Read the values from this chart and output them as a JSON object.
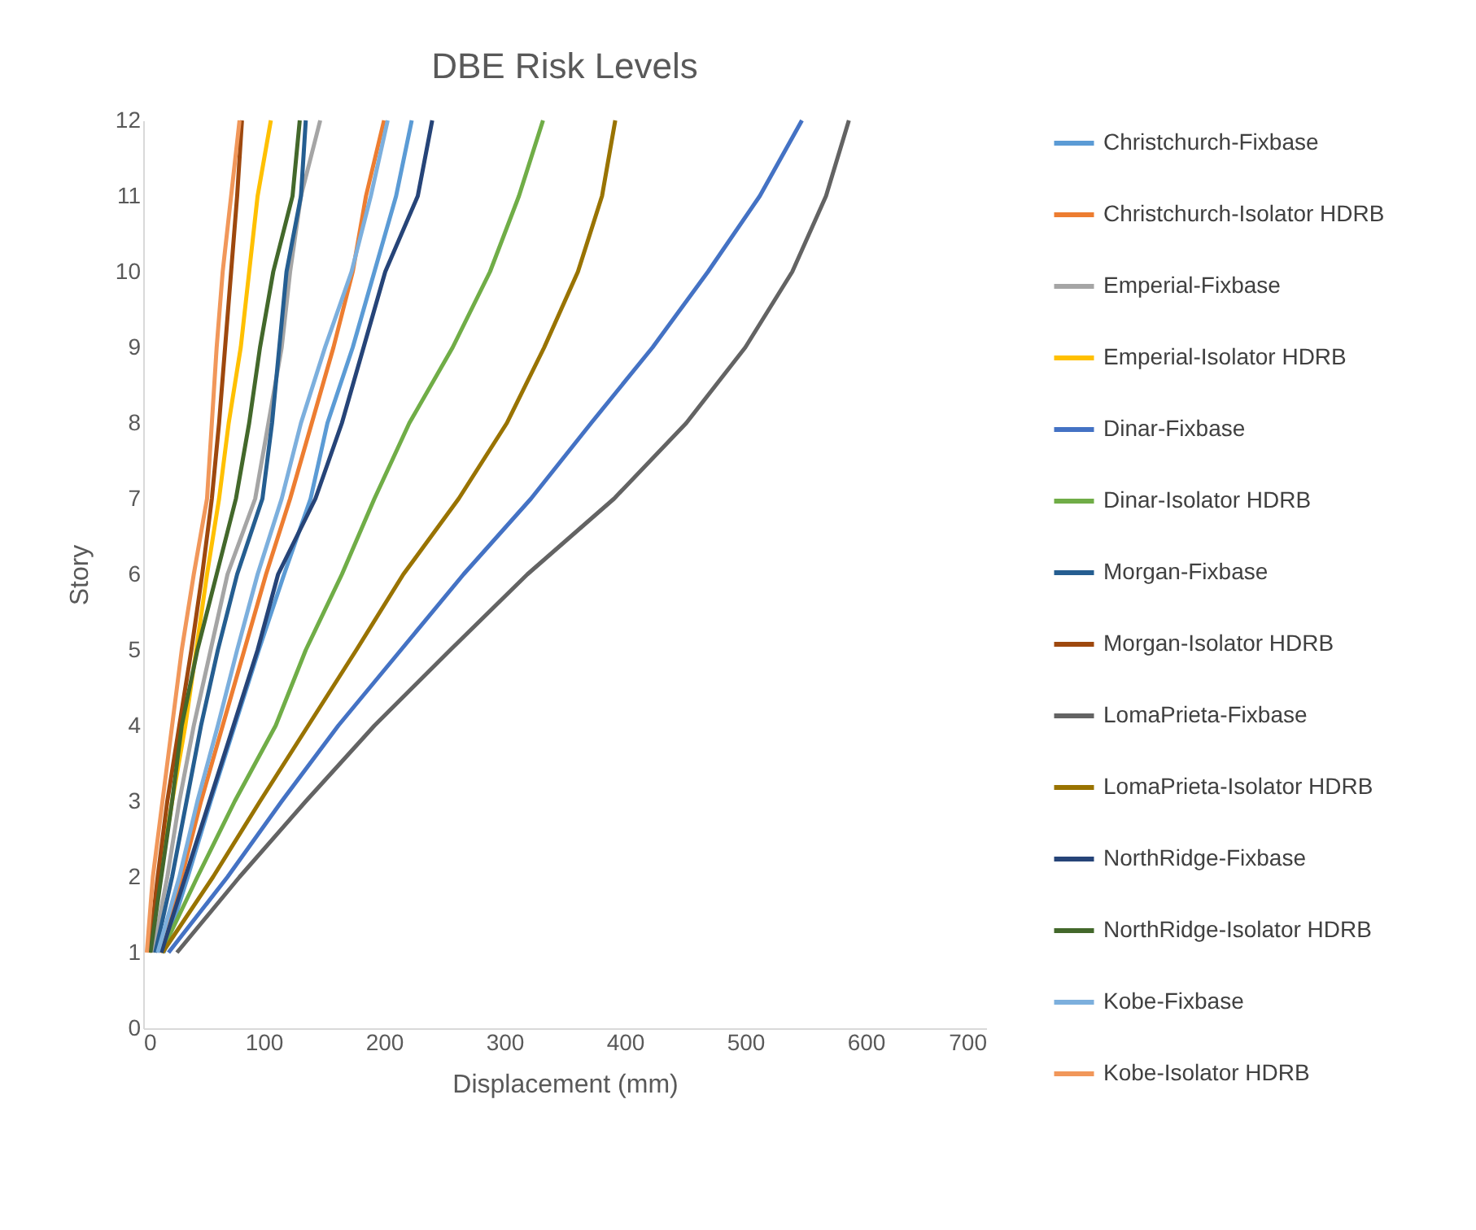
{
  "chart_data": {
    "type": "line",
    "title": "DBE Risk Levels",
    "xlabel": "Displacement (mm)",
    "ylabel": "Story",
    "xlim": [
      0,
      700
    ],
    "xticks": [
      0,
      100,
      200,
      300,
      400,
      500,
      600,
      700
    ],
    "ylim": [
      0,
      12
    ],
    "yticks": [
      0,
      1,
      2,
      3,
      4,
      5,
      6,
      7,
      8,
      9,
      10,
      11,
      12
    ],
    "grid": false,
    "legend": "right",
    "marker": "none",
    "line_style": "solid",
    "series": [
      {
        "name": "Christchurch-Fixbase",
        "color": "#5b9bd5",
        "x": [
          17,
          37,
          56,
          76,
          96,
          117,
          139,
          153,
          174,
          192,
          210,
          223
        ],
        "values": [
          1,
          2,
          3,
          4,
          5,
          6,
          7,
          8,
          9,
          10,
          11,
          12
        ]
      },
      {
        "name": "Christchurch-Isolator HDRB",
        "color": "#ed7d31",
        "x": [
          14,
          32,
          48,
          66,
          84,
          102,
          122,
          140,
          158,
          174,
          185,
          200
        ],
        "values": [
          1,
          2,
          3,
          4,
          5,
          6,
          7,
          8,
          9,
          10,
          11,
          12
        ]
      },
      {
        "name": "Emperial-Fixbase",
        "color": "#a5a5a5",
        "x": [
          8,
          20,
          30,
          42,
          56,
          70,
          93,
          104,
          115,
          122,
          131,
          147
        ],
        "values": [
          1,
          2,
          3,
          4,
          5,
          6,
          7,
          8,
          9,
          10,
          11,
          12
        ]
      },
      {
        "name": "Emperial-Isolator HDRB",
        "color": "#ffc000",
        "x": [
          5,
          14,
          24,
          35,
          44,
          53,
          63,
          71,
          81,
          88,
          95,
          106
        ],
        "values": [
          1,
          2,
          3,
          4,
          5,
          6,
          7,
          8,
          9,
          10,
          11,
          12
        ]
      },
      {
        "name": "Dinar-Fixbase",
        "color": "#4472c4",
        "x": [
          21,
          70,
          115,
          162,
          214,
          266,
          322,
          372,
          423,
          469,
          512,
          547
        ],
        "values": [
          1,
          2,
          3,
          4,
          5,
          6,
          7,
          8,
          9,
          10,
          11,
          12
        ]
      },
      {
        "name": "Dinar-Isolator HDRB",
        "color": "#70ad47",
        "x": [
          15,
          45,
          76,
          110,
          135,
          165,
          192,
          221,
          257,
          288,
          312,
          332
        ],
        "values": [
          1,
          2,
          3,
          4,
          5,
          6,
          7,
          8,
          9,
          10,
          11,
          12
        ]
      },
      {
        "name": "Morgan-Fixbase",
        "color": "#255e91",
        "x": [
          10,
          24,
          36,
          48,
          62,
          78,
          99,
          107,
          113,
          119,
          131,
          135
        ],
        "values": [
          1,
          2,
          3,
          4,
          5,
          6,
          7,
          8,
          9,
          10,
          11,
          12
        ]
      },
      {
        "name": "Morgan-Isolator HDRB",
        "color": "#9e480e",
        "x": [
          5,
          12,
          20,
          30,
          40,
          49,
          57,
          63,
          68,
          73,
          78,
          82
        ],
        "values": [
          1,
          2,
          3,
          4,
          5,
          6,
          7,
          8,
          9,
          10,
          11,
          12
        ]
      },
      {
        "name": "LomaPrieta-Fixbase",
        "color": "#636363",
        "x": [
          28,
          80,
          135,
          192,
          255,
          319,
          391,
          451,
          500,
          539,
          567,
          586
        ],
        "values": [
          1,
          2,
          3,
          4,
          5,
          6,
          7,
          8,
          9,
          10,
          11,
          12
        ]
      },
      {
        "name": "LomaPrieta-Isolator HDRB",
        "color": "#997300",
        "x": [
          16,
          58,
          97,
          137,
          177,
          216,
          262,
          302,
          333,
          361,
          381,
          392
        ],
        "values": [
          1,
          2,
          3,
          4,
          5,
          6,
          7,
          8,
          9,
          10,
          11,
          12
        ]
      },
      {
        "name": "NorthRidge-Fixbase",
        "color": "#264478",
        "x": [
          15,
          35,
          55,
          75,
          95,
          112,
          143,
          165,
          183,
          201,
          228,
          240
        ],
        "values": [
          1,
          2,
          3,
          4,
          5,
          6,
          7,
          8,
          9,
          10,
          11,
          12
        ]
      },
      {
        "name": "NorthRidge-Isolator HDRB",
        "color": "#43682b",
        "x": [
          6,
          15,
          24,
          32,
          45,
          61,
          77,
          88,
          97,
          108,
          124,
          130
        ],
        "values": [
          1,
          2,
          3,
          4,
          5,
          6,
          7,
          8,
          9,
          10,
          11,
          12
        ]
      },
      {
        "name": "Kobe-Fixbase",
        "color": "#7cafdd",
        "x": [
          12,
          30,
          45,
          62,
          78,
          95,
          115,
          131,
          151,
          173,
          189,
          203
        ],
        "values": [
          1,
          2,
          3,
          4,
          5,
          6,
          7,
          8,
          9,
          10,
          11,
          12
        ]
      },
      {
        "name": "Kobe-Isolator HDRB",
        "color": "#f1975a",
        "x": [
          3,
          8,
          16,
          24,
          32,
          42,
          53,
          57,
          61,
          66,
          73,
          80
        ],
        "values": [
          1,
          2,
          3,
          4,
          5,
          6,
          7,
          8,
          9,
          10,
          11,
          12
        ]
      }
    ]
  }
}
